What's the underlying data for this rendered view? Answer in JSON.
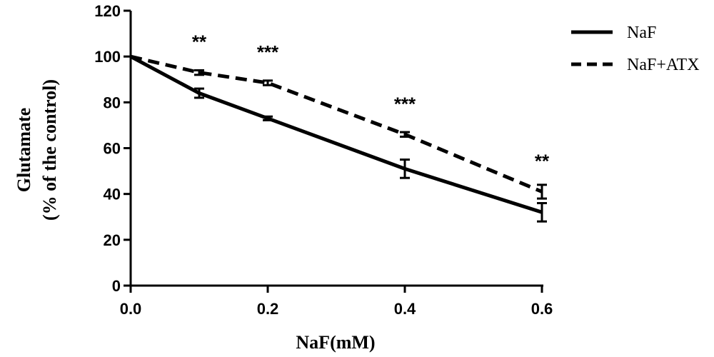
{
  "chart_data": {
    "type": "line",
    "xlabel": "NaF(mM)",
    "ylabel_line1": "Glutamate",
    "ylabel_line2": "(% of the control)",
    "xlim": [
      0,
      0.6
    ],
    "ylim": [
      0,
      120
    ],
    "x_ticks": [
      "0.0",
      "0.2",
      "0.4",
      "0.6"
    ],
    "x_tick_values": [
      0,
      0.2,
      0.4,
      0.6
    ],
    "y_ticks": [
      "0",
      "20",
      "40",
      "60",
      "80",
      "100",
      "120"
    ],
    "y_tick_values": [
      0,
      20,
      40,
      60,
      80,
      100,
      120
    ],
    "grid": false,
    "legend_position": "top-right",
    "series": [
      {
        "name": "NaF",
        "style": "solid",
        "x": [
          0,
          0.1,
          0.2,
          0.4,
          0.6
        ],
        "y": [
          100,
          84,
          73,
          51,
          32
        ],
        "error": [
          0,
          2,
          0.8,
          4,
          4
        ]
      },
      {
        "name": "NaF+ATX",
        "style": "dashed",
        "x": [
          0,
          0.1,
          0.2,
          0.4,
          0.6
        ],
        "y": [
          100,
          93,
          88.5,
          66,
          41
        ],
        "error": [
          0,
          1,
          1,
          1,
          3
        ]
      }
    ],
    "annotations": [
      {
        "x": 0.1,
        "y": 93,
        "text": "**"
      },
      {
        "x": 0.2,
        "y": 88.5,
        "text": "***"
      },
      {
        "x": 0.4,
        "y": 66,
        "text": "***"
      },
      {
        "x": 0.6,
        "y": 41,
        "text": "**"
      }
    ]
  }
}
